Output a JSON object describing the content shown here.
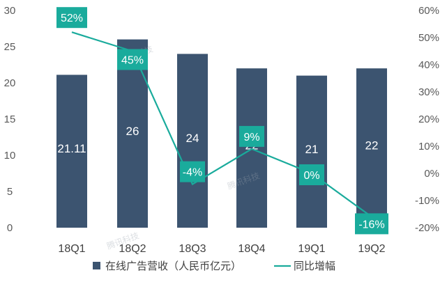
{
  "chart_data": {
    "type": "bar+line",
    "categories": [
      "18Q1",
      "18Q2",
      "18Q3",
      "18Q4",
      "19Q1",
      "19Q2"
    ],
    "series": [
      {
        "name": "在线广告营收（人民币亿元）",
        "type": "bar",
        "axis": "left",
        "values": [
          21.11,
          26,
          24,
          22,
          21,
          22
        ],
        "labels": [
          "21.11",
          "26",
          "24",
          "22",
          "21",
          "22"
        ],
        "color": "#3c5470"
      },
      {
        "name": "同比增幅",
        "type": "line",
        "axis": "right",
        "values": [
          52,
          45,
          -4,
          9,
          0,
          -16
        ],
        "labels": [
          "52%",
          "45%",
          "-4%",
          "9%",
          "0%",
          "-16%"
        ],
        "color": "#1aab9c"
      }
    ],
    "left_axis": {
      "ylim": [
        0,
        30
      ],
      "ticks": [
        0,
        5,
        10,
        15,
        20,
        25,
        30
      ]
    },
    "right_axis": {
      "ylim": [
        -20,
        60
      ],
      "ticks": [
        "-20%",
        "-10%",
        "0%",
        "10%",
        "20%",
        "30%",
        "40%",
        "50%",
        "60%"
      ]
    },
    "grid": false,
    "legend_position": "bottom",
    "watermark": "腾讯科技"
  }
}
